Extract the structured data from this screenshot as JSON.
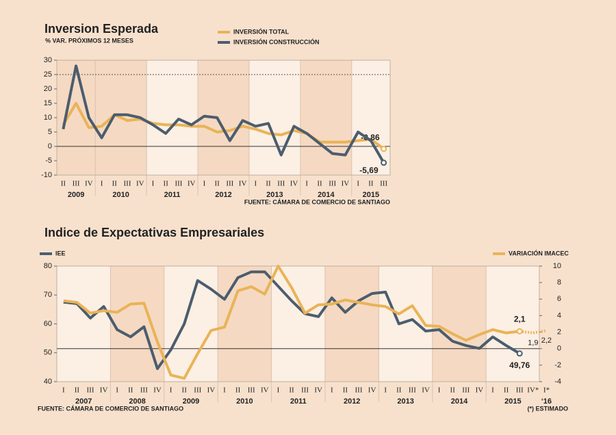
{
  "chart_data": [
    {
      "type": "line",
      "title": "Inversion Esperada",
      "subtitle": "% VAR. PRÓXIMOS 12 MESES",
      "categories": [
        "II",
        "III",
        "IV",
        "I",
        "II",
        "III",
        "IV",
        "I",
        "II",
        "III",
        "IV",
        "I",
        "II",
        "III",
        "IV",
        "I",
        "II",
        "III",
        "IV",
        "I",
        "II",
        "III",
        "IV",
        "I",
        "II",
        "III"
      ],
      "groups": [
        {
          "label": "2009",
          "count": 3
        },
        {
          "label": "2010",
          "count": 4
        },
        {
          "label": "2011",
          "count": 4
        },
        {
          "label": "2012",
          "count": 4
        },
        {
          "label": "2013",
          "count": 4
        },
        {
          "label": "2014",
          "count": 4
        },
        {
          "label": "2015",
          "count": 3
        }
      ],
      "series": [
        {
          "name": "INVERSIÓN TOTAL",
          "color": "#e9b357",
          "values": [
            7.5,
            15,
            6.5,
            7,
            11,
            9,
            9.5,
            8,
            7.5,
            7.5,
            7,
            7,
            5,
            5.5,
            7,
            6,
            4.5,
            4,
            5.5,
            4.5,
            1.5,
            1.5,
            1.5,
            2,
            2.5,
            -0.86
          ],
          "value_labels": [
            null,
            null,
            null,
            null,
            null,
            null,
            null,
            null,
            null,
            null,
            null,
            null,
            null,
            null,
            null,
            null,
            null,
            null,
            null,
            null,
            null,
            null,
            null,
            null,
            null,
            "-0,86"
          ]
        },
        {
          "name": "INVERSIÓN CONSTRUCCIÓN",
          "color": "#4b5d6e",
          "values": [
            6,
            28,
            10,
            3,
            11,
            11,
            10,
            7.5,
            4.5,
            9.5,
            7.5,
            10.5,
            10,
            2,
            9,
            7,
            8,
            -3,
            7,
            4.5,
            1,
            -2.5,
            -3,
            5,
            2,
            -5.69
          ],
          "value_labels": [
            null,
            null,
            null,
            null,
            null,
            null,
            null,
            null,
            null,
            null,
            null,
            null,
            null,
            null,
            null,
            null,
            null,
            null,
            null,
            null,
            null,
            null,
            null,
            null,
            null,
            "-5,69"
          ]
        }
      ],
      "ylim": [
        -10,
        30
      ],
      "yticks": [
        -10,
        -5,
        0,
        5,
        10,
        15,
        20,
        25,
        30
      ],
      "ref_lines": [
        25
      ],
      "zero_line": true,
      "source": "FUENTE: CÁMARA DE COMERCIO DE SANTIAGO"
    },
    {
      "type": "line",
      "title": "Indice de Expectativas Empresariales",
      "categories": [
        "I",
        "II",
        "III",
        "IV",
        "I",
        "II",
        "III",
        "IV",
        "I",
        "II",
        "III",
        "IV",
        "I",
        "II",
        "III",
        "IV",
        "I",
        "II",
        "III",
        "IV",
        "I",
        "II",
        "III",
        "IV",
        "I",
        "II",
        "III",
        "IV",
        "I",
        "II",
        "III",
        "IV",
        "I",
        "II",
        "III",
        "IV*",
        "I*"
      ],
      "groups": [
        {
          "label": "2007",
          "count": 4
        },
        {
          "label": "2008",
          "count": 4
        },
        {
          "label": "2009",
          "count": 4
        },
        {
          "label": "2010",
          "count": 4
        },
        {
          "label": "2011",
          "count": 4
        },
        {
          "label": "2012",
          "count": 4
        },
        {
          "label": "2013",
          "count": 4
        },
        {
          "label": "2014",
          "count": 4
        },
        {
          "label": "2015",
          "count": 4
        },
        {
          "label": "‘16",
          "count": 1
        }
      ],
      "series": [
        {
          "name": "IEE",
          "color": "#4b5d6e",
          "axis": "y",
          "values": [
            67.5,
            67,
            62,
            66,
            58,
            55.5,
            59,
            44.5,
            51,
            60,
            75,
            72,
            68.5,
            76,
            78,
            78,
            73,
            68,
            63.5,
            62.5,
            69,
            64,
            68,
            70.5,
            71,
            60,
            61.5,
            57.5,
            58,
            54,
            52.5,
            51.5,
            55.5,
            52.5,
            49.76,
            null,
            null
          ],
          "value_labels": [
            null,
            null,
            null,
            null,
            null,
            null,
            null,
            null,
            null,
            null,
            null,
            null,
            null,
            null,
            null,
            null,
            null,
            null,
            null,
            null,
            null,
            null,
            null,
            null,
            null,
            null,
            null,
            null,
            null,
            null,
            null,
            null,
            null,
            null,
            "49,76",
            null,
            null
          ]
        },
        {
          "name": "VARIACIÓN IMACEC",
          "color": "#e9b357",
          "axis": "y2",
          "values": [
            5.8,
            5.6,
            4.3,
            4.6,
            4.4,
            5.4,
            5.5,
            0.8,
            -3.2,
            -3.6,
            -0.6,
            2.2,
            2.6,
            7.0,
            7.5,
            6.6,
            10,
            7.4,
            4.3,
            5.3,
            5.4,
            5.9,
            5.6,
            5.3,
            5.1,
            4.2,
            5.2,
            2.8,
            2.7,
            1.8,
            1.0,
            1.7,
            2.3,
            1.9,
            2.1,
            1.9,
            2.2
          ],
          "value_labels": [
            null,
            null,
            null,
            null,
            null,
            null,
            null,
            null,
            null,
            null,
            null,
            null,
            null,
            null,
            null,
            null,
            null,
            null,
            null,
            null,
            null,
            null,
            null,
            null,
            null,
            null,
            null,
            null,
            null,
            null,
            null,
            null,
            null,
            null,
            "2,1",
            "1,9",
            "2,2"
          ]
        }
      ],
      "ylim": [
        40,
        80
      ],
      "yticks": [
        40,
        50,
        60,
        70,
        80
      ],
      "y2lim": [
        -4,
        10
      ],
      "y2ticks": [
        -4,
        -2,
        0,
        2,
        4,
        6,
        8,
        10
      ],
      "zero_line": true,
      "source": "FUENTE: CÁMARA DE COMERCIO DE SANTIAGO",
      "note": "(*) ESTIMADO"
    }
  ]
}
